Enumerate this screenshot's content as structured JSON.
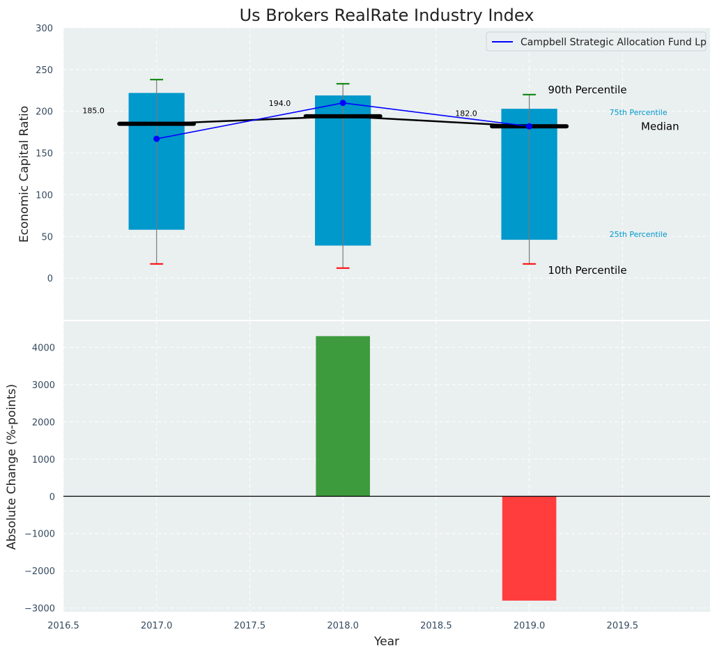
{
  "chart_data": [
    {
      "type": "box-bar",
      "title": "Us Brokers RealRate Industry Index",
      "ylabel": "Economic Capital Ratio",
      "ylim": [
        -50,
        300
      ],
      "yticks": [
        0,
        50,
        100,
        150,
        200,
        250,
        300
      ],
      "grid": true,
      "legend": {
        "placement": "top-right",
        "entries": [
          "Campbell Strategic Allocation Fund Lp"
        ]
      },
      "x": [
        2017.0,
        2018.0,
        2019.0
      ],
      "percentiles": {
        "p10": [
          17,
          12,
          17
        ],
        "p25": [
          58,
          39,
          46
        ],
        "median": [
          185,
          194,
          182
        ],
        "p75": [
          222,
          219,
          203
        ],
        "p90": [
          238,
          233,
          220
        ]
      },
      "median_labels": [
        "185.0",
        "194.0",
        "182.0"
      ],
      "series": [
        {
          "name": "Campbell Strategic Allocation Fund Lp",
          "x": [
            2017.0,
            2018.0,
            2019.0
          ],
          "values": [
            167,
            210,
            182
          ],
          "color": "#0000ff"
        }
      ],
      "annotations": {
        "p90": "90th Percentile",
        "p75": "75th Percentile",
        "median": "Median",
        "p25": "25th Percentile",
        "p10": "10th Percentile"
      },
      "colors": {
        "box": "#0099cc",
        "median": "#000000",
        "p90_cap": "#008000",
        "p10_cap": "#ff0000",
        "background": "#eaeff0"
      }
    },
    {
      "type": "bar",
      "ylabel": "Absolute Change (%-points)",
      "xlabel": "Year",
      "ylim": [
        -3100,
        4700
      ],
      "yticks": [
        -3000,
        -2000,
        -1000,
        0,
        1000,
        2000,
        3000,
        4000
      ],
      "xlim": [
        2016.5,
        2019.97
      ],
      "xticks": [
        2016.5,
        2017.0,
        2017.5,
        2018.0,
        2018.5,
        2019.0,
        2019.5
      ],
      "x": [
        2018.0,
        2019.0
      ],
      "values": [
        4300,
        -2800
      ],
      "colors": {
        "positive": "#3d9b3d",
        "negative": "#ff3d3d"
      },
      "grid": true
    }
  ]
}
